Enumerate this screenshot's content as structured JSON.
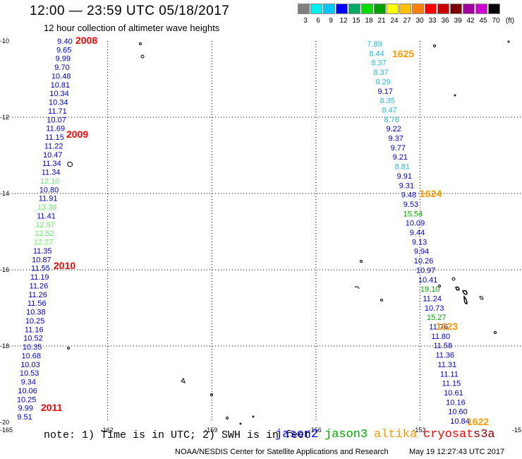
{
  "header": {
    "title": "12:00 — 23:59 UTC 05/18/2017",
    "subtitle": "12 hour collection of altimeter wave heights"
  },
  "colorbar": {
    "unit": "(ft)",
    "levels": [
      "3",
      "6",
      "9",
      "12",
      "15",
      "18",
      "21",
      "24",
      "27",
      "30",
      "33",
      "36",
      "39",
      "42",
      "45",
      "70"
    ],
    "colors": [
      "#808080",
      "#00f0f0",
      "#00c8ff",
      "#0000ff",
      "#00aa66",
      "#00e000",
      "#00a000",
      "#ffff00",
      "#ffc000",
      "#ff8000",
      "#ff0000",
      "#cc0000",
      "#800000",
      "#a000a0",
      "#d000d0",
      "#000000"
    ]
  },
  "map": {
    "lon_ticks": [
      "-165",
      "-162",
      "-159",
      "-156",
      "-153",
      "-15"
    ],
    "lat_ticks": [
      "-10",
      "-12",
      "-14",
      "-16",
      "-18",
      "-20"
    ]
  },
  "chart_data": {
    "type": "scatter",
    "xlim": [
      -165,
      -150
    ],
    "ylim": [
      -20,
      -10
    ],
    "grid": true,
    "track_labels": [
      {
        "text": "2008",
        "color": "#ff0000"
      },
      {
        "text": "2009",
        "color": "#ff0000"
      },
      {
        "text": "2010",
        "color": "#ff0000"
      },
      {
        "text": "2011",
        "color": "#ff0000"
      },
      {
        "text": "1625",
        "color": "#ff9900"
      },
      {
        "text": "1624",
        "color": "#ff9900"
      },
      {
        "text": "1623",
        "color": "#ff9900"
      },
      {
        "text": "1622",
        "color": "#ff9900"
      }
    ],
    "series": [
      {
        "name": "west track",
        "values": [
          {
            "v": "9.40",
            "c": "#0000cc"
          },
          {
            "v": "9.65",
            "c": "#0000cc"
          },
          {
            "v": "9.99",
            "c": "#0000cc"
          },
          {
            "v": "9.70",
            "c": "#0000cc"
          },
          {
            "v": "10.48",
            "c": "#0000cc"
          },
          {
            "v": "10.81",
            "c": "#0000cc"
          },
          {
            "v": "10.34",
            "c": "#0000cc"
          },
          {
            "v": "10.34",
            "c": "#0000cc"
          },
          {
            "v": "11.71",
            "c": "#0000cc"
          },
          {
            "v": "10.07",
            "c": "#0000cc"
          },
          {
            "v": "11.69",
            "c": "#0000cc"
          },
          {
            "v": "11.15",
            "c": "#0000cc"
          },
          {
            "v": "11.22",
            "c": "#0000cc"
          },
          {
            "v": "10.47",
            "c": "#0000cc"
          },
          {
            "v": "11.34",
            "c": "#0000cc"
          },
          {
            "v": "11.34",
            "c": "#0000cc"
          },
          {
            "v": "12.10",
            "c": "#66ee66"
          },
          {
            "v": "10.80",
            "c": "#0000cc"
          },
          {
            "v": "11.91",
            "c": "#0000cc"
          },
          {
            "v": "13.36",
            "c": "#66ee66"
          },
          {
            "v": "11.41",
            "c": "#0000cc"
          },
          {
            "v": "12.57",
            "c": "#66ee66"
          },
          {
            "v": "12.52",
            "c": "#66ee66"
          },
          {
            "v": "12.27",
            "c": "#66ee66"
          },
          {
            "v": "11.35",
            "c": "#0000cc"
          },
          {
            "v": "10.87",
            "c": "#0000cc"
          },
          {
            "v": "11.55",
            "c": "#0000cc"
          },
          {
            "v": "11.19",
            "c": "#0000cc"
          },
          {
            "v": "11.26",
            "c": "#0000cc"
          },
          {
            "v": "11.26",
            "c": "#0000cc"
          },
          {
            "v": "11.56",
            "c": "#0000cc"
          },
          {
            "v": "10.38",
            "c": "#0000cc"
          },
          {
            "v": "10.25",
            "c": "#0000cc"
          },
          {
            "v": "11.16",
            "c": "#0000cc"
          },
          {
            "v": "10.52",
            "c": "#0000cc"
          },
          {
            "v": "10.35",
            "c": "#0000cc"
          },
          {
            "v": "10.68",
            "c": "#0000cc"
          },
          {
            "v": "10.03",
            "c": "#0000cc"
          },
          {
            "v": "10.53",
            "c": "#0000cc"
          },
          {
            "v": "9.34",
            "c": "#0000cc"
          },
          {
            "v": "10.06",
            "c": "#0000cc"
          },
          {
            "v": "10.25",
            "c": "#0000cc"
          },
          {
            "v": "9.99",
            "c": "#0000cc"
          },
          {
            "v": "9.51",
            "c": "#0000cc"
          }
        ]
      },
      {
        "name": "east track",
        "values": [
          {
            "v": "7.89",
            "c": "#22bbdd"
          },
          {
            "v": "8.44",
            "c": "#22bbdd"
          },
          {
            "v": "8.37",
            "c": "#22bbdd"
          },
          {
            "v": "8.37",
            "c": "#22bbdd"
          },
          {
            "v": "8.29",
            "c": "#22bbdd"
          },
          {
            "v": "9.17",
            "c": "#0000cc"
          },
          {
            "v": "8.35",
            "c": "#22bbdd"
          },
          {
            "v": "8.47",
            "c": "#22bbdd"
          },
          {
            "v": "8.76",
            "c": "#22bbdd"
          },
          {
            "v": "9.22",
            "c": "#0000cc"
          },
          {
            "v": "9.37",
            "c": "#0000cc"
          },
          {
            "v": "9.77",
            "c": "#0000cc"
          },
          {
            "v": "9.21",
            "c": "#0000cc"
          },
          {
            "v": "8.81",
            "c": "#22bbdd"
          },
          {
            "v": "9.91",
            "c": "#0000cc"
          },
          {
            "v": "9.31",
            "c": "#0000cc"
          },
          {
            "v": "9.48",
            "c": "#0000cc"
          },
          {
            "v": "9.53",
            "c": "#0000cc"
          },
          {
            "v": "15.54",
            "c": "#00aa00"
          },
          {
            "v": "10.09",
            "c": "#0000cc"
          },
          {
            "v": "9.44",
            "c": "#0000cc"
          },
          {
            "v": "9.13",
            "c": "#0000cc"
          },
          {
            "v": "9.94",
            "c": "#0000cc"
          },
          {
            "v": "10.26",
            "c": "#0000cc"
          },
          {
            "v": "10.97",
            "c": "#0000cc"
          },
          {
            "v": "10.41",
            "c": "#0000cc"
          },
          {
            "v": "19.10",
            "c": "#00aa00"
          },
          {
            "v": "11.24",
            "c": "#0000cc"
          },
          {
            "v": "10.73",
            "c": "#0000cc"
          },
          {
            "v": "15.27",
            "c": "#00aa00"
          },
          {
            "v": "11.76",
            "c": "#0000cc"
          },
          {
            "v": "11.80",
            "c": "#0000cc"
          },
          {
            "v": "11.58",
            "c": "#0000cc"
          },
          {
            "v": "11.36",
            "c": "#0000cc"
          },
          {
            "v": "11.31",
            "c": "#0000cc"
          },
          {
            "v": "11.11",
            "c": "#0000cc"
          },
          {
            "v": "11.15",
            "c": "#0000cc"
          },
          {
            "v": "10.61",
            "c": "#0000cc"
          },
          {
            "v": "10.16",
            "c": "#0000cc"
          },
          {
            "v": "10.60",
            "c": "#0000cc"
          },
          {
            "v": "10.84",
            "c": "#0000cc"
          }
        ]
      }
    ]
  },
  "legend": {
    "note": "note: 1) Time is in UTC; 2) SWH is in feet",
    "satellites": [
      {
        "label": "jason2",
        "color": "#0000ff"
      },
      {
        "label": "jason3",
        "color": "#00aa00"
      },
      {
        "label": "altika",
        "color": "#ff9900"
      },
      {
        "label": "cryosat",
        "color": "#ff0000"
      },
      {
        "label": "s3a",
        "color": "#880000"
      }
    ]
  },
  "footer": {
    "credit": "NOAA/NESDIS Center for Satellite Applications and Research",
    "timestamp": "May 19 12:27:43 UTC 2017"
  }
}
